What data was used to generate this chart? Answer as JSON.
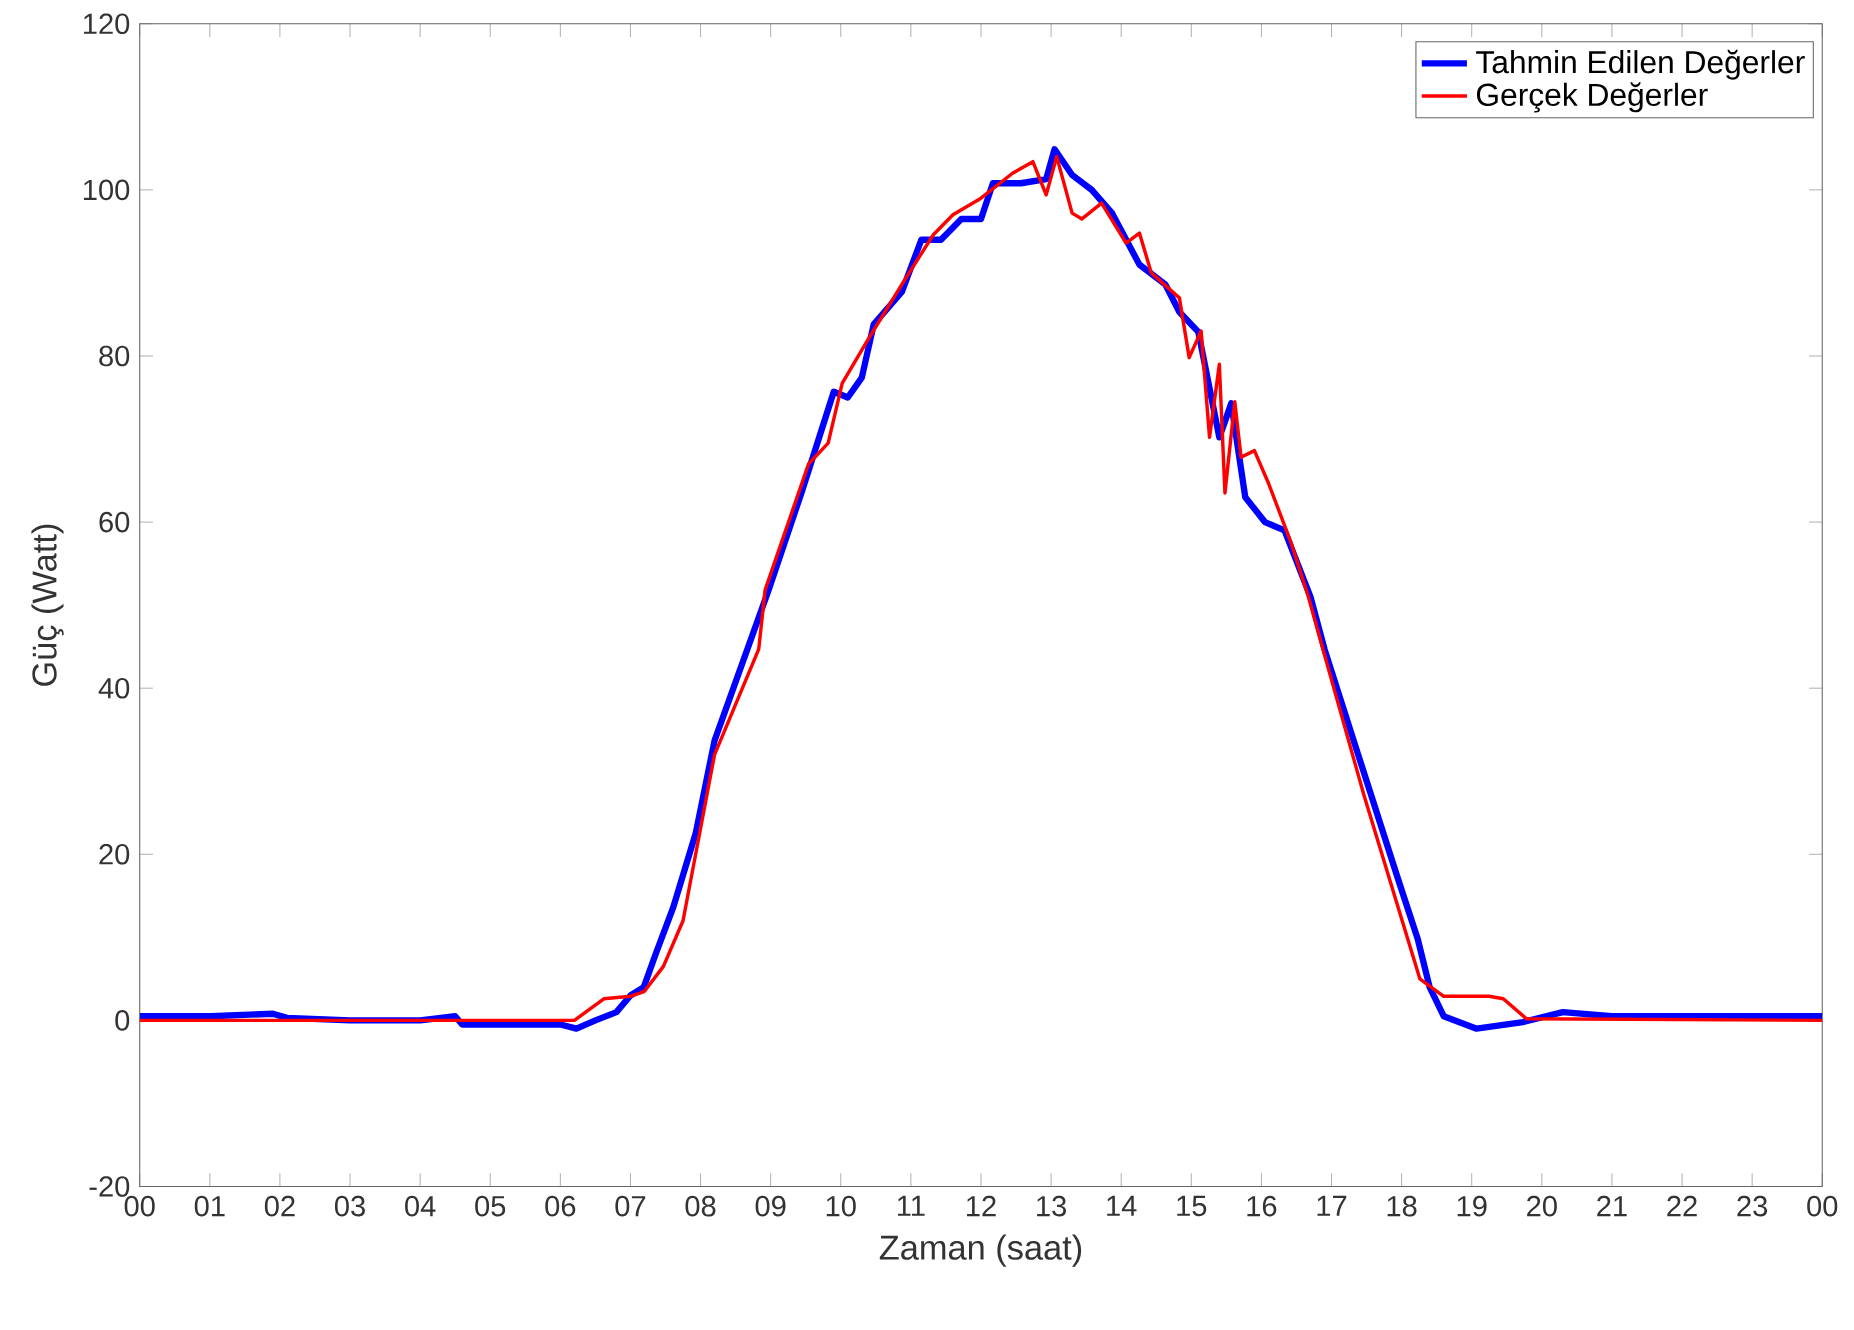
{
  "chart_data": {
    "type": "line",
    "xlabel": "Zaman (saat)",
    "ylabel": "Güç (Watt)",
    "xlim": [
      0,
      24
    ],
    "ylim": [
      -20,
      120
    ],
    "yticks": [
      -20,
      0,
      20,
      40,
      60,
      80,
      100,
      120
    ],
    "xticks": [
      {
        "value": 0,
        "label": "00"
      },
      {
        "value": 1,
        "label": "01"
      },
      {
        "value": 2,
        "label": "02"
      },
      {
        "value": 3,
        "label": "03"
      },
      {
        "value": 4,
        "label": "04"
      },
      {
        "value": 5,
        "label": "05"
      },
      {
        "value": 6,
        "label": "06"
      },
      {
        "value": 7,
        "label": "07"
      },
      {
        "value": 8,
        "label": "08"
      },
      {
        "value": 9,
        "label": "09"
      },
      {
        "value": 10,
        "label": "10"
      },
      {
        "value": 11,
        "label": "11"
      },
      {
        "value": 12,
        "label": "12"
      },
      {
        "value": 13,
        "label": "13"
      },
      {
        "value": 14,
        "label": "14"
      },
      {
        "value": 15,
        "label": "15"
      },
      {
        "value": 16,
        "label": "16"
      },
      {
        "value": 17,
        "label": "17"
      },
      {
        "value": 18,
        "label": "18"
      },
      {
        "value": 19,
        "label": "19"
      },
      {
        "value": 20,
        "label": "20"
      },
      {
        "value": 21,
        "label": "21"
      },
      {
        "value": 22,
        "label": "22"
      },
      {
        "value": 23,
        "label": "23"
      },
      {
        "value": 24,
        "label": "00"
      }
    ],
    "grid": false,
    "legend": "top right",
    "marker": "none",
    "line_style": "solid",
    "series": [
      {
        "name": "Tahmin Edilen Değerler",
        "color": "#0000ff",
        "x": [
          0,
          1,
          1.9,
          2.1,
          3,
          4,
          4.5,
          4.6,
          5,
          5.5,
          6,
          6.23,
          6.5,
          6.8,
          7.0,
          7.19,
          7.36,
          7.61,
          7.93,
          8.2,
          8.97,
          9.45,
          9.9,
          10.1,
          10.3,
          10.47,
          10.87,
          11.15,
          11.43,
          11.72,
          12.0,
          12.17,
          12.57,
          12.93,
          13.05,
          13.3,
          13.58,
          13.87,
          14.26,
          14.63,
          14.83,
          15.1,
          15.4,
          15.57,
          15.77,
          16.05,
          16.33,
          16.7,
          16.9,
          17.38,
          17.95,
          18.23,
          18.4,
          18.6,
          19.07,
          19.73,
          20.3,
          21,
          22,
          23,
          24
        ],
        "values": [
          0.5,
          0.5,
          0.8,
          0.3,
          0,
          0,
          0.5,
          -0.5,
          -0.5,
          -0.5,
          -0.5,
          -1,
          0,
          1,
          3,
          4,
          8,
          13.6,
          22.5,
          33.7,
          51.8,
          63.8,
          75.7,
          75,
          77.4,
          83.8,
          87.7,
          94,
          94,
          96.5,
          96.5,
          100.8,
          100.8,
          101.3,
          104.9,
          101.8,
          100,
          97.2,
          91,
          88.6,
          85.3,
          82.9,
          70.2,
          74.3,
          63,
          60,
          59,
          51,
          44.7,
          32,
          17,
          9.8,
          4,
          0.5,
          -1,
          -0.2,
          1,
          0.5,
          0.5,
          0.5,
          0.5
        ]
      },
      {
        "name": "Gerçek Değerler",
        "color": "#ff0000",
        "x": [
          0,
          6.2,
          6.62,
          7.0,
          7.2,
          7.47,
          7.75,
          8.2,
          8.83,
          8.92,
          9.54,
          9.82,
          10.02,
          10.39,
          10.87,
          11.32,
          11.6,
          12.0,
          12.45,
          12.74,
          12.93,
          13.08,
          13.3,
          13.44,
          13.72,
          14.07,
          14.26,
          14.43,
          14.83,
          14.97,
          15.14,
          15.26,
          15.4,
          15.48,
          15.62,
          15.71,
          15.9,
          16.1,
          16.42,
          16.67,
          16.98,
          17.46,
          18.26,
          18.6,
          19.25,
          19.45,
          19.78,
          24
        ],
        "values": [
          0,
          0,
          2.6,
          2.9,
          3.5,
          6.5,
          12,
          32,
          44.7,
          51.8,
          67,
          69.5,
          76.7,
          82,
          88.6,
          94.6,
          97,
          99,
          102,
          103.4,
          99.4,
          104,
          97.2,
          96.5,
          98.4,
          93.6,
          94.8,
          90,
          87,
          79.8,
          83,
          70.2,
          79,
          63.5,
          74.5,
          67.8,
          68.6,
          64.7,
          57.6,
          51,
          41.6,
          27.2,
          5,
          2.9,
          2.9,
          2.6,
          0.2,
          0
        ]
      }
    ]
  }
}
